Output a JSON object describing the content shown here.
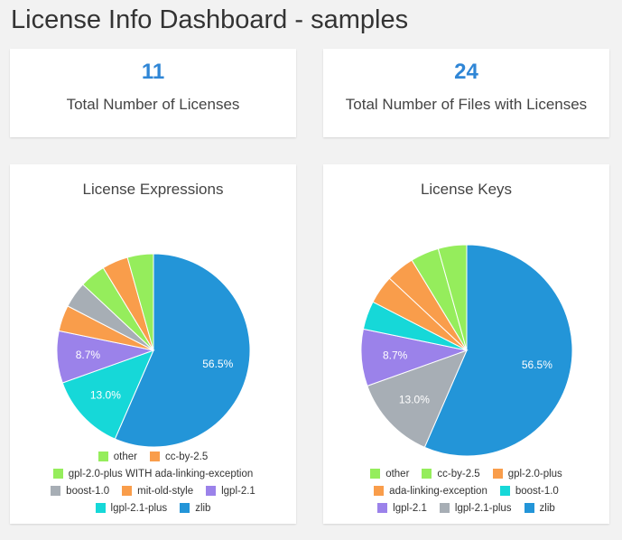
{
  "header": {
    "title": "License Info Dashboard - samples"
  },
  "stats": [
    {
      "value": "11",
      "label": "Total Number of Licenses"
    },
    {
      "value": "24",
      "label": "Total Number of Files with Licenses"
    }
  ],
  "chart_data": [
    {
      "type": "pie",
      "title": "License Expressions",
      "categories": [
        "other",
        "cc-by-2.5",
        "gpl-2.0-plus WITH ada-linking-exception",
        "boost-1.0",
        "mit-old-style",
        "lgpl-2.1",
        "lgpl-2.1-plus",
        "zlib"
      ],
      "values": [
        4.35,
        4.35,
        4.35,
        4.35,
        4.35,
        8.7,
        13.0,
        56.5
      ],
      "colors": [
        "#95ed5c",
        "#f99d4b",
        "#95ed5c",
        "#a7aeb5",
        "#f99d4b",
        "#9b82ea",
        "#16d8d8",
        "#2395d8"
      ],
      "slice_labels": [
        "",
        "",
        "",
        "",
        "",
        "8.7%",
        "13.0%",
        "56.5%"
      ],
      "legend_rows": [
        [
          0,
          1
        ],
        [
          2
        ],
        [
          3,
          4,
          5
        ],
        [
          6,
          7
        ]
      ]
    },
    {
      "type": "pie",
      "title": "License Keys",
      "categories": [
        "other",
        "cc-by-2.5",
        "gpl-2.0-plus",
        "ada-linking-exception",
        "boost-1.0",
        "lgpl-2.1",
        "lgpl-2.1-plus",
        "zlib"
      ],
      "values": [
        4.35,
        4.35,
        4.35,
        4.35,
        4.35,
        8.7,
        13.0,
        56.5
      ],
      "colors": [
        "#95ed5c",
        "#95ed5c",
        "#f99d4b",
        "#f99d4b",
        "#16d8d8",
        "#9b82ea",
        "#a7aeb5",
        "#2395d8"
      ],
      "slice_labels": [
        "",
        "",
        "",
        "",
        "",
        "8.7%",
        "13.0%",
        "56.5%"
      ],
      "legend_rows": [
        [
          0,
          1,
          2
        ],
        [
          3,
          4
        ],
        [
          5,
          6,
          7
        ]
      ]
    }
  ]
}
